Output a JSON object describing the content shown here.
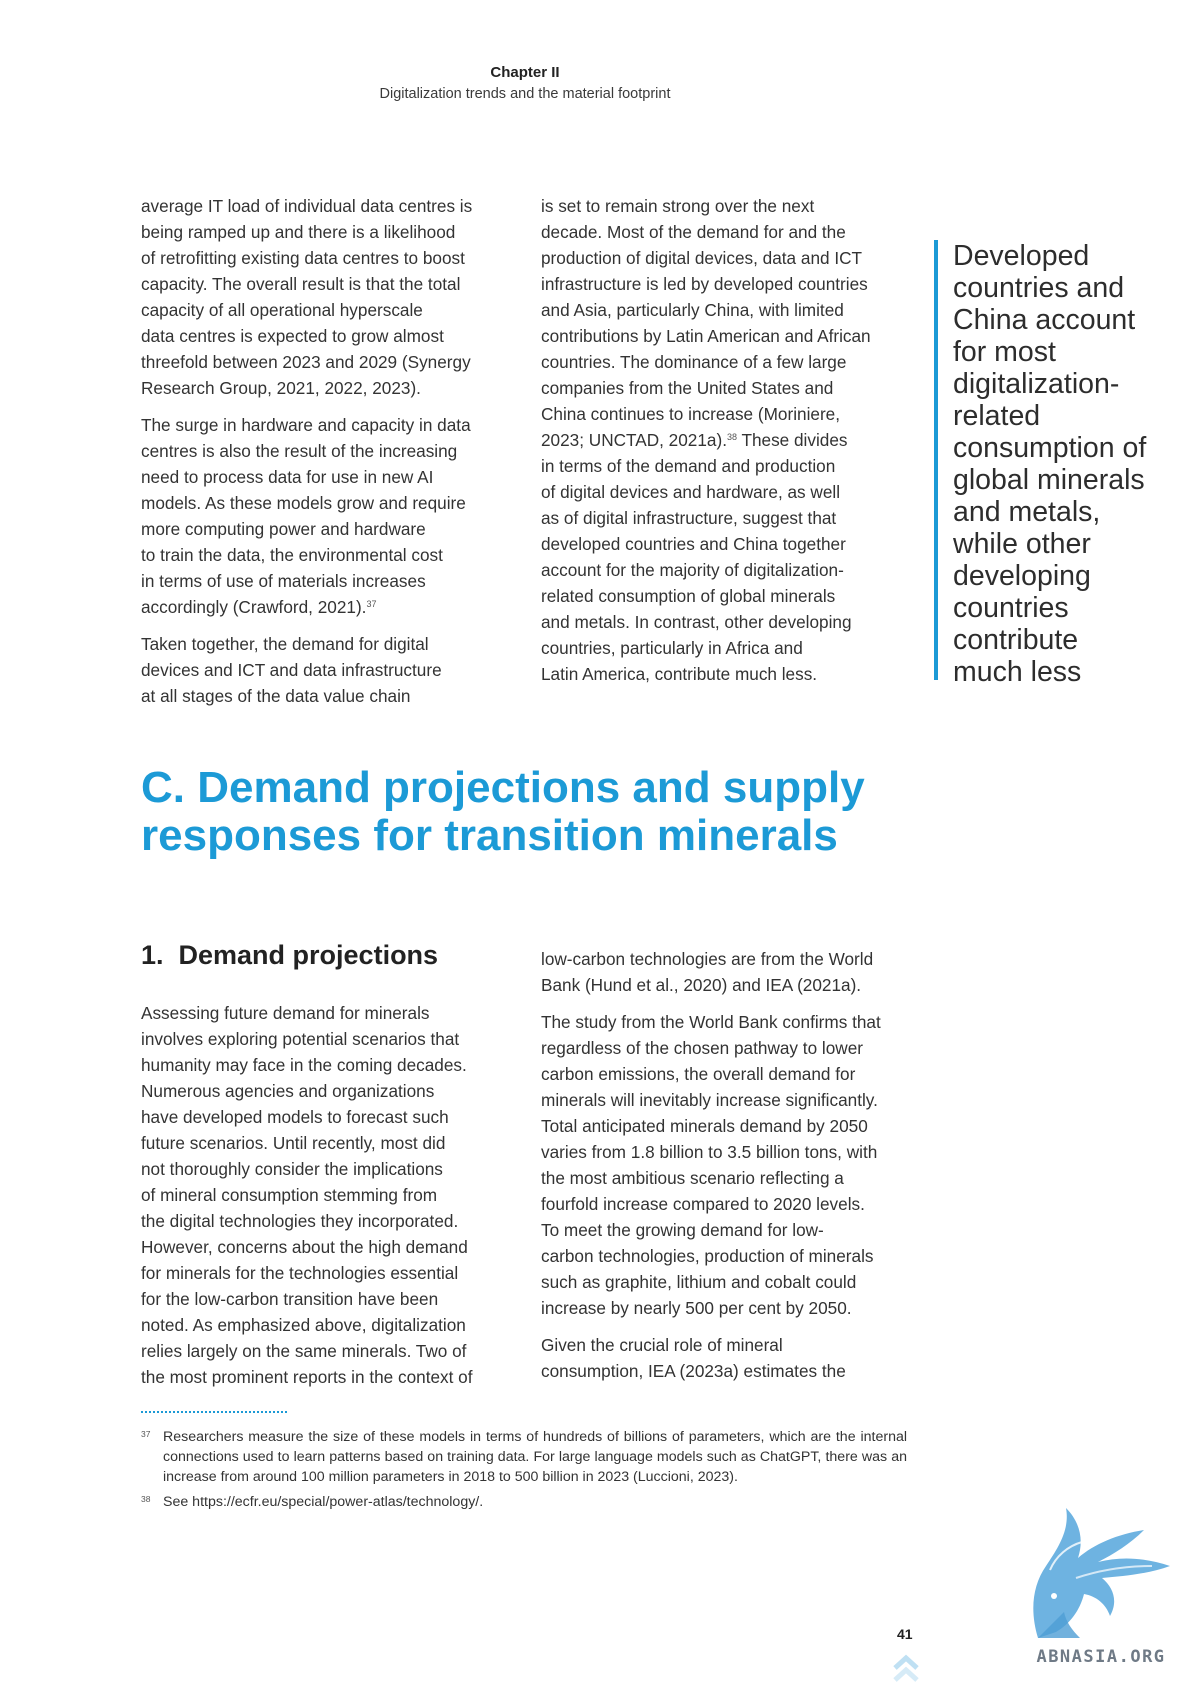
{
  "header": {
    "chapter": "Chapter II",
    "subtitle": "Digitalization trends and the material footprint"
  },
  "col_a": {
    "p1": [
      "average IT load of individual data centres is",
      "being ramped up and there is a likelihood",
      "of retrofitting existing data centres to boost",
      "capacity. The overall result is that the total",
      "capacity of all operational hyperscale",
      "data centres is expected to grow almost",
      "threefold between 2023 and 2029 (Synergy",
      "Research Group, 2021, 2022, 2023)."
    ],
    "p2": [
      "The surge in hardware and capacity in data",
      "centres is also the result of the increasing",
      "need to process data for use in new AI",
      "models. As these models grow and require",
      "more computing power and hardware",
      "to train the data, the environmental cost",
      "in terms of use of materials increases"
    ],
    "p2_last": "accordingly (Crawford, 2021).",
    "p2_ref": "37",
    "p3": [
      "Taken together, the demand for digital",
      "devices and ICT and data infrastructure",
      "at all stages of the data value chain"
    ]
  },
  "col_b": {
    "p1": [
      "is set to remain strong over the next",
      "decade. Most of the demand for and the",
      "production of digital devices, data and ICT",
      "infrastructure is led by developed countries",
      "and Asia, particularly China, with limited",
      "contributions by Latin American and African",
      "countries. The dominance of a few large",
      "companies from the United States and",
      "China continues to increase (Moriniere,"
    ],
    "p1_ref_pre": "2023; UNCTAD, 2021a).",
    "p1_ref": "38",
    "p1_ref_post": " These divides",
    "p1_rest": [
      "in terms of the demand and production",
      "of digital devices and hardware, as well",
      "as of digital infrastructure, suggest that",
      "developed countries and China together",
      "account for the majority of digitalization-",
      "related consumption of global minerals",
      "and metals. In contrast, other developing",
      "countries, particularly in Africa and",
      "Latin America, contribute much less."
    ]
  },
  "pullquote": [
    "Developed",
    "countries and",
    "China account",
    "for most",
    "digitalization-",
    "related",
    "consumption of",
    "global minerals",
    "and metals,",
    "while other",
    "developing",
    "countries",
    "contribute",
    "much less"
  ],
  "section": {
    "title_lines": [
      "C. Demand projections and supply",
      "responses for transition minerals"
    ],
    "subheading": "1.  Demand projections"
  },
  "col_c": {
    "p1": [
      "Assessing future demand for minerals",
      "involves exploring potential scenarios that",
      "humanity may face in the coming decades.",
      "Numerous agencies and organizations",
      "have developed models to forecast such",
      "future scenarios. Until recently, most did",
      "not thoroughly consider the implications",
      "of mineral consumption stemming from",
      "the digital technologies they incorporated.",
      "However, concerns about the high demand",
      "for minerals for the technologies essential",
      "for the low-carbon transition have been",
      "noted. As emphasized above, digitalization",
      "relies largely on the same minerals. Two of",
      "the most prominent reports in the context of"
    ]
  },
  "col_d": {
    "p1": [
      "low-carbon technologies are from the World",
      "Bank (Hund et al., 2020) and IEA (2021a)."
    ],
    "p2": [
      "The study from the World Bank confirms that",
      "regardless of the chosen pathway to lower",
      "carbon emissions, the overall demand for",
      "minerals will inevitably increase significantly.",
      "Total anticipated minerals demand by 2050",
      "varies from 1.8 billion to 3.5 billion tons, with",
      "the most ambitious scenario reflecting a",
      "fourfold increase compared to 2020 levels.",
      "To meet the growing demand for low-",
      "carbon technologies, production of minerals",
      "such as graphite, lithium and cobalt could",
      "increase by nearly 500 per cent by 2050."
    ],
    "p3": [
      "Given the crucial role of mineral",
      "consumption, IEA (2023a) estimates the"
    ]
  },
  "footnotes": [
    {
      "num": "37",
      "text": "Researchers measure the size of these models in terms of hundreds of billions of parameters, which are the internal connections used to learn patterns based on training data. For large language models such as ChatGPT, there was an increase from around 100 million parameters in 2018 to 500 billion in 2023 (Luccioni, 2023)."
    },
    {
      "num": "38",
      "text": "See https://ecfr.eu/special/power-atlas/technology/."
    }
  ],
  "page_number": "41",
  "logo": {
    "text": "ABNASIA.ORG",
    "icon": "griffin-logo-icon"
  },
  "colors": {
    "accent": "#1c9ad6",
    "text": "#333333",
    "logo": "#5aa8dd"
  }
}
